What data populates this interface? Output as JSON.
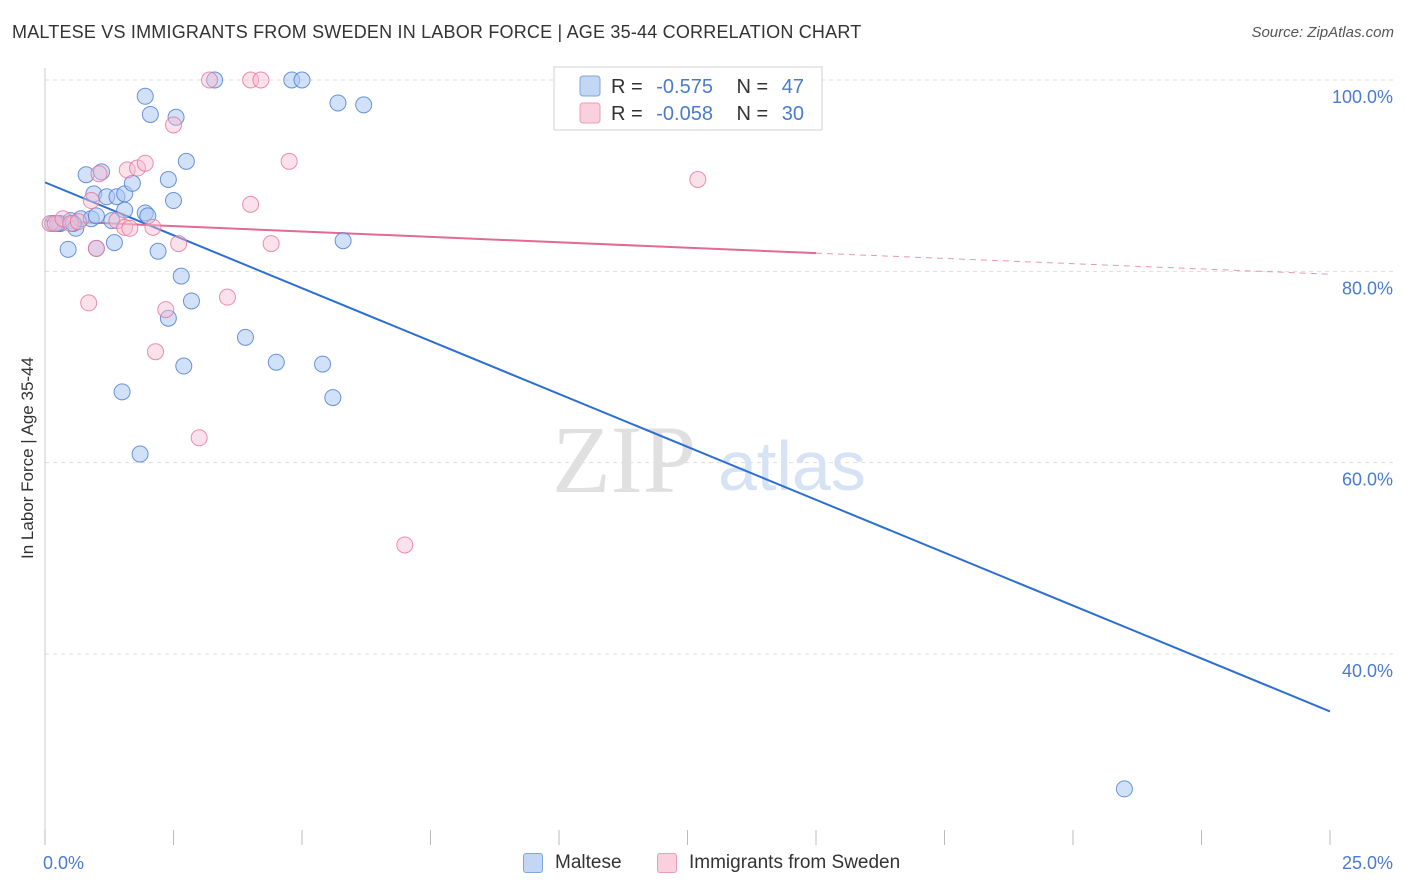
{
  "title": "MALTESE VS IMMIGRANTS FROM SWEDEN IN LABOR FORCE | AGE 35-44 CORRELATION CHART",
  "source": "Source: ZipAtlas.com",
  "watermark": {
    "zip": "ZIP",
    "atlas": "atlas"
  },
  "colors": {
    "blue": "#4a7bd0",
    "blue_fill": "#aac8f2",
    "blue_line": "#2d6fd1",
    "pink": "#e8739b",
    "pink_fill": "#f7bdd0",
    "pink_line": "#e06b94",
    "grid": "#dddddd",
    "axis": "#cccccc"
  },
  "legend": {
    "r_label": "R =",
    "n_label": "N =",
    "series": [
      {
        "name": "Maltese",
        "r": "-0.575",
        "n": "47"
      },
      {
        "name": "Immigrants from Sweden",
        "r": "-0.058",
        "n": "30"
      }
    ]
  },
  "chart_data": {
    "type": "scatter",
    "title": "MALTESE VS IMMIGRANTS FROM SWEDEN IN LABOR FORCE | AGE 35-44 CORRELATION CHART",
    "xlabel": "",
    "ylabel": "In Labor Force | Age 35-44",
    "xlim": [
      0,
      25
    ],
    "ylim": [
      18,
      103
    ],
    "x_tick_labels": {
      "left": "0.0%",
      "right": "25.0%"
    },
    "y_ticks": [
      {
        "value": 100,
        "label": "100.0%"
      },
      {
        "value": 80,
        "label": "80.0%"
      },
      {
        "value": 60,
        "label": "60.0%"
      },
      {
        "value": 40,
        "label": "40.0%"
      }
    ],
    "series": [
      {
        "name": "Maltese",
        "color": "#4a7bd0",
        "points": [
          [
            0.15,
            85.0
          ],
          [
            0.3,
            85.0
          ],
          [
            0.5,
            85.3
          ],
          [
            0.6,
            84.5
          ],
          [
            0.7,
            85.5
          ],
          [
            0.9,
            85.5
          ],
          [
            0.45,
            82.3
          ],
          [
            0.8,
            90.1
          ],
          [
            0.95,
            88.1
          ],
          [
            1.1,
            90.4
          ],
          [
            1.2,
            87.8
          ],
          [
            1.4,
            87.8
          ],
          [
            1.55,
            88.1
          ],
          [
            1.7,
            89.2
          ],
          [
            1.3,
            85.3
          ],
          [
            1.0,
            82.4
          ],
          [
            1.35,
            83.0
          ],
          [
            1.55,
            86.4
          ],
          [
            1.95,
            86.1
          ],
          [
            1.95,
            98.3
          ],
          [
            2.05,
            96.4
          ],
          [
            2.55,
            96.1
          ],
          [
            2.5,
            87.4
          ],
          [
            2.4,
            89.6
          ],
          [
            2.2,
            82.1
          ],
          [
            2.65,
            79.5
          ],
          [
            2.75,
            91.5
          ],
          [
            2.85,
            76.9
          ],
          [
            2.4,
            75.1
          ],
          [
            3.3,
            100.0
          ],
          [
            4.8,
            100.0
          ],
          [
            5.0,
            100.0
          ],
          [
            5.7,
            97.6
          ],
          [
            6.2,
            97.4
          ],
          [
            5.8,
            83.2
          ],
          [
            3.9,
            73.1
          ],
          [
            4.5,
            70.5
          ],
          [
            5.4,
            70.3
          ],
          [
            2.7,
            70.1
          ],
          [
            5.6,
            66.8
          ],
          [
            1.5,
            67.4
          ],
          [
            1.85,
            60.9
          ],
          [
            21.0,
            25.9
          ],
          [
            0.25,
            85.0
          ],
          [
            0.55,
            85.0
          ],
          [
            1.0,
            85.8
          ],
          [
            2.0,
            85.8
          ]
        ],
        "trend": {
          "x0": 0,
          "y0": 89.3,
          "x1": 25,
          "y1": 34.0
        }
      },
      {
        "name": "Immigrants from Sweden",
        "color": "#e8739b",
        "points": [
          [
            0.1,
            85.0
          ],
          [
            0.2,
            85.0
          ],
          [
            0.35,
            85.5
          ],
          [
            0.5,
            85.0
          ],
          [
            0.65,
            85.2
          ],
          [
            0.9,
            87.4
          ],
          [
            1.05,
            90.2
          ],
          [
            1.4,
            85.3
          ],
          [
            1.55,
            84.6
          ],
          [
            1.6,
            90.6
          ],
          [
            1.8,
            90.8
          ],
          [
            1.95,
            91.3
          ],
          [
            1.65,
            84.5
          ],
          [
            2.1,
            84.6
          ],
          [
            2.5,
            95.3
          ],
          [
            2.6,
            82.9
          ],
          [
            2.35,
            76.0
          ],
          [
            2.15,
            71.6
          ],
          [
            1.0,
            82.4
          ],
          [
            0.85,
            76.7
          ],
          [
            3.0,
            62.6
          ],
          [
            3.2,
            100.0
          ],
          [
            4.0,
            100.0
          ],
          [
            4.2,
            100.0
          ],
          [
            3.55,
            77.3
          ],
          [
            4.0,
            87.0
          ],
          [
            4.4,
            82.9
          ],
          [
            4.75,
            91.5
          ],
          [
            7.0,
            51.4
          ],
          [
            12.7,
            89.6
          ]
        ],
        "trend": {
          "x0": 0,
          "y0": 85.3,
          "x1": 15,
          "y1": 81.9,
          "dashed_to_x": 25,
          "dashed_to_y": 79.7
        }
      }
    ]
  }
}
